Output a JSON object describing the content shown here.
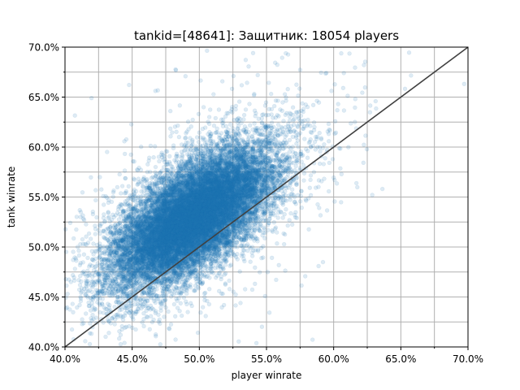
{
  "chart_data": {
    "type": "scatter",
    "title": "tankid=[48641]: Защитник: 18054 players",
    "xlabel": "player winrate",
    "ylabel": "tank winrate",
    "xlim": [
      0.4,
      0.7
    ],
    "ylim": [
      0.4,
      0.7
    ],
    "x_ticks": [
      0.4,
      0.45,
      0.5,
      0.55,
      0.6,
      0.65,
      0.7
    ],
    "y_ticks": [
      0.4,
      0.45,
      0.5,
      0.55,
      0.6,
      0.65,
      0.7
    ],
    "x_tick_labels": [
      "40.0%",
      "45.0%",
      "50.0%",
      "55.0%",
      "60.0%",
      "65.0%",
      "70.0%"
    ],
    "y_tick_labels": [
      "40.0%",
      "45.0%",
      "50.0%",
      "55.0%",
      "60.0%",
      "65.0%",
      "70.0%"
    ],
    "grid": true,
    "minor_grid": true,
    "point_count": 18054,
    "point_color": "#1f77b4",
    "point_alpha": 0.15,
    "reference_line": {
      "from": [
        0.4,
        0.4
      ],
      "to": [
        0.7,
        0.7
      ],
      "color": "#404040"
    },
    "distribution_estimate": {
      "x_mean": 0.495,
      "y_mean": 0.53,
      "x_sd": 0.03,
      "y_sd": 0.035,
      "correlation": 0.65
    }
  }
}
